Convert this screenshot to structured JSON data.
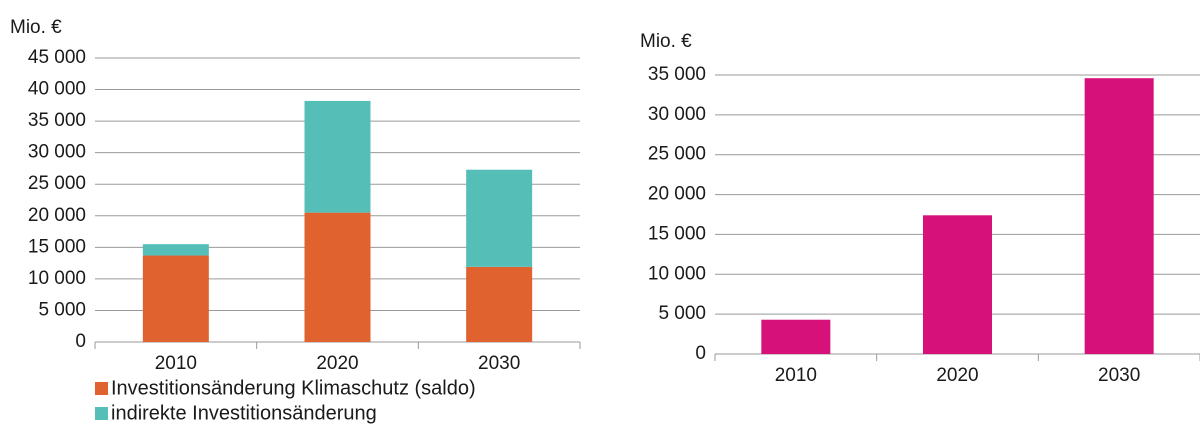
{
  "chart_data": [
    {
      "type": "stacked_bar",
      "y_label": "Mio. €",
      "categories": [
        "2010",
        "2020",
        "2030"
      ],
      "series": [
        {
          "name": "Investitionsänderung Klimaschutz (saldo)",
          "color": "#e0622f",
          "values": [
            13700,
            20500,
            11900
          ]
        },
        {
          "name": "indirekte Investitionsänderung",
          "color": "#55bfb7",
          "values": [
            1800,
            17700,
            15400
          ]
        }
      ],
      "ylim": [
        0,
        45000
      ],
      "yticks": [
        0,
        {
          "value": 5000,
          "label": "5 000"
        },
        {
          "value": 10000,
          "label": "10 000"
        },
        {
          "value": 15000,
          "label": "15 000"
        },
        {
          "value": 20000,
          "label": "20 000"
        },
        {
          "value": 25000,
          "label": "25 000"
        },
        {
          "value": 30000,
          "label": "30 000"
        },
        {
          "value": 35000,
          "label": "35 000"
        },
        {
          "value": 40000,
          "label": "40 000"
        },
        {
          "value": 45000,
          "label": "45 000"
        }
      ],
      "grid": true
    },
    {
      "type": "bar",
      "y_label": "Mio. €",
      "categories": [
        "2010",
        "2020",
        "2030"
      ],
      "values": [
        4300,
        17400,
        34600
      ],
      "color": "#d6117a",
      "ylim": [
        0,
        35000
      ],
      "yticks": [
        0,
        {
          "value": 5000,
          "label": "5 000"
        },
        {
          "value": 10000,
          "label": "10 000"
        },
        {
          "value": 15000,
          "label": "15 000"
        },
        {
          "value": 20000,
          "label": "20 000"
        },
        {
          "value": 25000,
          "label": "25 000"
        },
        {
          "value": 30000,
          "label": "30 000"
        },
        {
          "value": 35000,
          "label": "35 000"
        }
      ],
      "grid": true
    }
  ]
}
